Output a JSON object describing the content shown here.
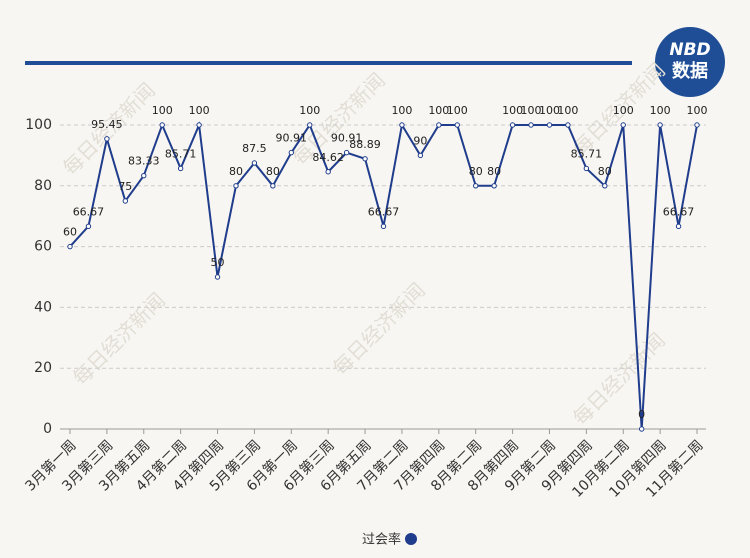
{
  "chart_data": {
    "type": "line",
    "logo": {
      "top": "NBD",
      "bottom": "数据"
    },
    "watermark": "每日经济新闻",
    "categories": [
      "3月第一周",
      null,
      "3月第三周",
      null,
      "3月第五周",
      null,
      "4月第二周",
      null,
      "4月第四周",
      null,
      "5月第三周",
      null,
      "6月第一周",
      null,
      "6月第三周",
      null,
      "6月第五周",
      null,
      "7月第二周",
      null,
      "7月第四周",
      null,
      "8月第二周",
      null,
      "8月第四周",
      null,
      "9月第二周",
      null,
      "9月第四周",
      null,
      "10月第二周",
      null,
      "10月第四周",
      null,
      "11月第二周"
    ],
    "series": [
      {
        "name": "过会率",
        "color": "#1f3d8c",
        "values": [
          60,
          66.67,
          95.45,
          75,
          83.33,
          100,
          85.71,
          100,
          50,
          80,
          87.5,
          80,
          90.91,
          100,
          84.62,
          90.91,
          88.89,
          66.67,
          100,
          90,
          100,
          100,
          80,
          80,
          100,
          100,
          100,
          100,
          85.71,
          80,
          100,
          0,
          100,
          66.67,
          100
        ]
      }
    ],
    "ylim": [
      0,
      100
    ],
    "yticks": [
      0,
      20,
      40,
      60,
      80,
      100
    ],
    "grid": true,
    "legend": "bottom"
  }
}
